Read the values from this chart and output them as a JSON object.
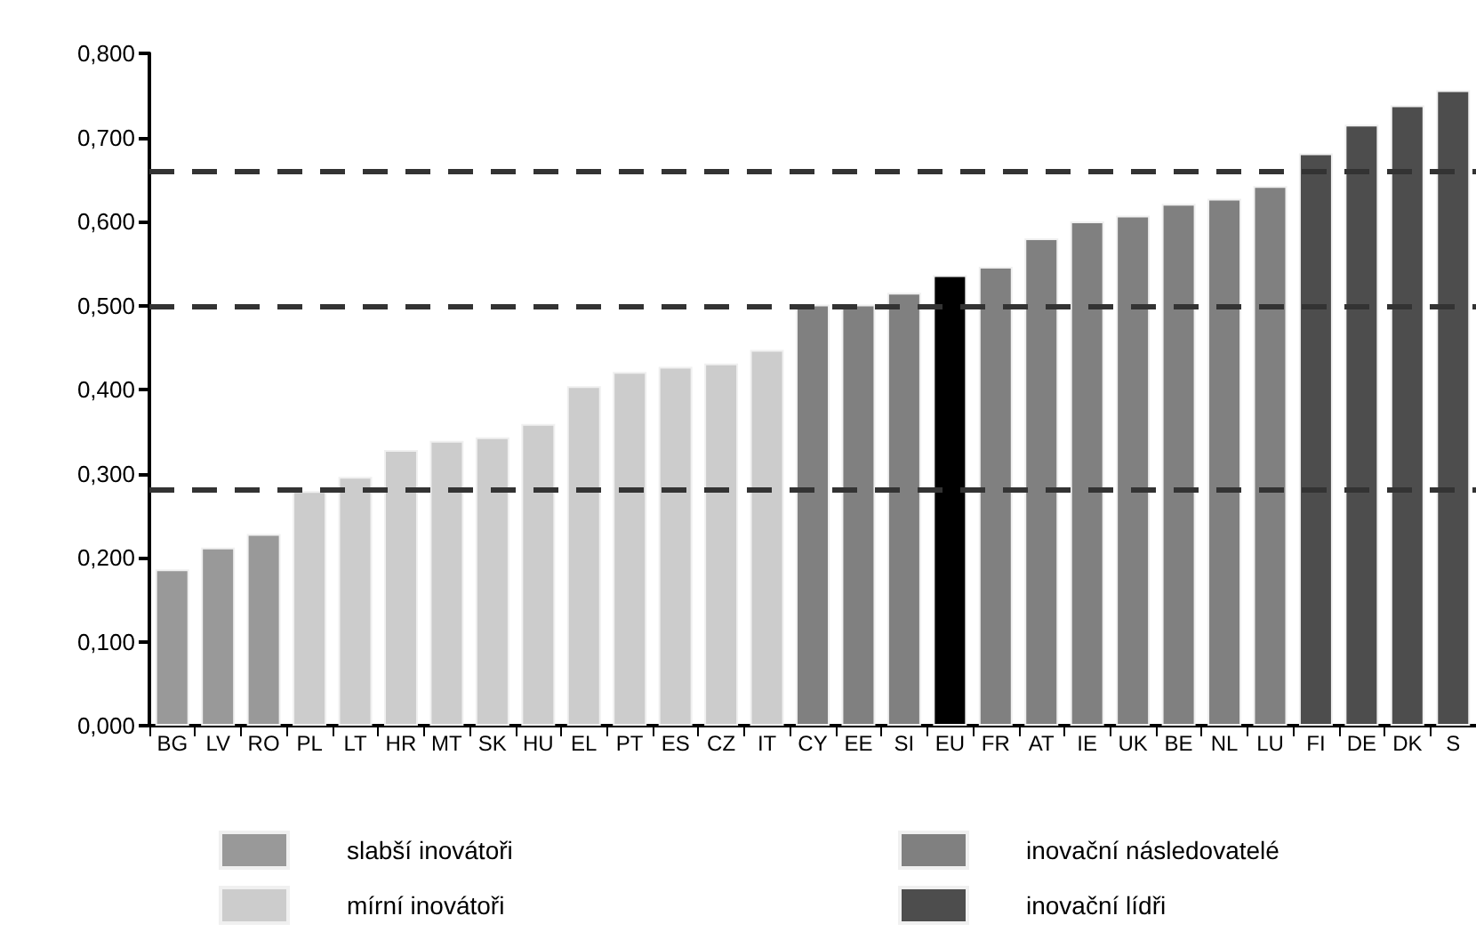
{
  "chart_data": {
    "type": "bar",
    "categories": [
      "BG",
      "LV",
      "RO",
      "PL",
      "LT",
      "HR",
      "MT",
      "SK",
      "HU",
      "EL",
      "PT",
      "ES",
      "CZ",
      "IT",
      "CY",
      "EE",
      "SI",
      "EU",
      "FR",
      "AT",
      "IE",
      "UK",
      "BE",
      "NL",
      "LU",
      "FI",
      "DE",
      "DK",
      "S"
    ],
    "series": [
      {
        "name": "slabší inovátoři",
        "color": "#999999",
        "values": [
          0.186,
          0.212,
          0.228,
          null,
          null,
          null,
          null,
          null,
          null,
          null,
          null,
          null,
          null,
          null,
          null,
          null,
          null,
          null,
          null,
          null,
          null,
          null,
          null,
          null,
          null,
          null,
          null,
          null,
          null
        ]
      },
      {
        "name": "mírní inovátoři",
        "color": "#cccccc",
        "values": [
          null,
          null,
          null,
          0.279,
          0.296,
          0.328,
          0.339,
          0.343,
          0.359,
          0.404,
          0.421,
          0.427,
          0.431,
          0.447,
          null,
          null,
          null,
          null,
          null,
          null,
          null,
          null,
          null,
          null,
          null,
          null,
          null,
          null,
          null
        ]
      },
      {
        "name": "inovační následovatelé",
        "color": "#808080",
        "values": [
          null,
          null,
          null,
          null,
          null,
          null,
          null,
          null,
          null,
          null,
          null,
          null,
          null,
          null,
          0.501,
          0.501,
          0.515,
          null,
          0.546,
          0.58,
          0.6,
          0.607,
          0.621,
          0.627,
          0.642,
          null,
          null,
          null,
          null
        ]
      },
      {
        "name": "inovační lídři",
        "color": "#4d4d4d",
        "values": [
          null,
          null,
          null,
          null,
          null,
          null,
          null,
          null,
          null,
          null,
          null,
          null,
          null,
          null,
          null,
          null,
          null,
          null,
          null,
          null,
          null,
          null,
          null,
          null,
          null,
          0.681,
          0.715,
          0.738,
          0.756
        ]
      },
      {
        "color": "#000000",
        "values": [
          null,
          null,
          null,
          null,
          null,
          null,
          null,
          null,
          null,
          null,
          null,
          null,
          null,
          null,
          null,
          null,
          null,
          0.536,
          null,
          null,
          null,
          null,
          null,
          null,
          null,
          null,
          null,
          null,
          null
        ]
      }
    ],
    "ylim": [
      0,
      0.8
    ],
    "yticks": [
      {
        "value": 0,
        "label": "0,000"
      },
      {
        "value": 0.1,
        "label": "0,100"
      },
      {
        "value": 0.2,
        "label": "0,200"
      },
      {
        "value": 0.3,
        "label": "0,300"
      },
      {
        "value": 0.4,
        "label": "0,400"
      },
      {
        "value": 0.5,
        "label": "0,500"
      },
      {
        "value": 0.6,
        "label": "0,600"
      },
      {
        "value": 0.7,
        "label": "0,700"
      },
      {
        "value": 0.8,
        "label": "0,800"
      }
    ],
    "ref_lines": [
      {
        "axis": "y",
        "value": 0.66,
        "color": "#333333",
        "line_style": "dashed"
      },
      {
        "axis": "y",
        "value": 0.496,
        "color": "#333333",
        "line_style": "dashed"
      },
      {
        "axis": "y",
        "value": 0.278,
        "color": "#333333",
        "line_style": "dashed"
      }
    ],
    "grid": false,
    "legend": "bottom"
  }
}
